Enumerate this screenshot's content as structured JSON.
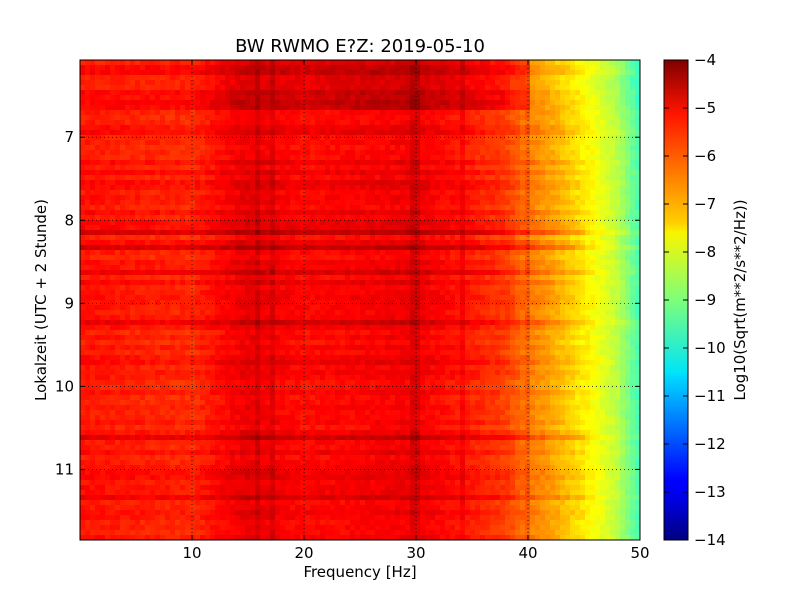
{
  "chart_data": {
    "type": "heatmap",
    "title": "BW RWMO E?Z: 2019-05-10",
    "xlabel": "Frequency [Hz]",
    "ylabel": "Lokalzeit (UTC + 2 Stunde)",
    "xlim": [
      0,
      50
    ],
    "ylim": [
      11.85,
      6.07
    ],
    "y_inverted": true,
    "x_ticks": [
      10,
      20,
      30,
      40,
      50
    ],
    "y_ticks": [
      7,
      8,
      9,
      10,
      11
    ],
    "grid": true,
    "colormap": "jet",
    "colorbar": {
      "label": "Log10(Sqrt(m**2/s**2/Hz))",
      "range": [
        -14,
        -4
      ],
      "ticks": [
        -4,
        -5,
        -6,
        -7,
        -8,
        -9,
        -10,
        -11,
        -12,
        -13,
        -14
      ]
    },
    "spectrum_profile": {
      "frequency_hz": [
        0,
        5,
        10,
        15,
        20,
        25,
        30,
        35,
        38,
        40,
        42,
        44,
        46,
        48,
        50
      ],
      "log10_amplitude": [
        -5.4,
        -5.5,
        -5.6,
        -5.0,
        -5.3,
        -5.2,
        -5.1,
        -5.5,
        -5.8,
        -6.4,
        -6.8,
        -7.3,
        -7.8,
        -8.4,
        -9.6
      ]
    },
    "features": {
      "early_band_end_hour": 6.7,
      "early_band_cutoff_hz": 40,
      "strong_rows_hour": [
        8.15,
        8.35,
        8.6,
        9.25,
        10.63,
        11.35
      ],
      "spectral_lines_hz": [
        16,
        17,
        29.5,
        30,
        34,
        40
      ]
    }
  }
}
